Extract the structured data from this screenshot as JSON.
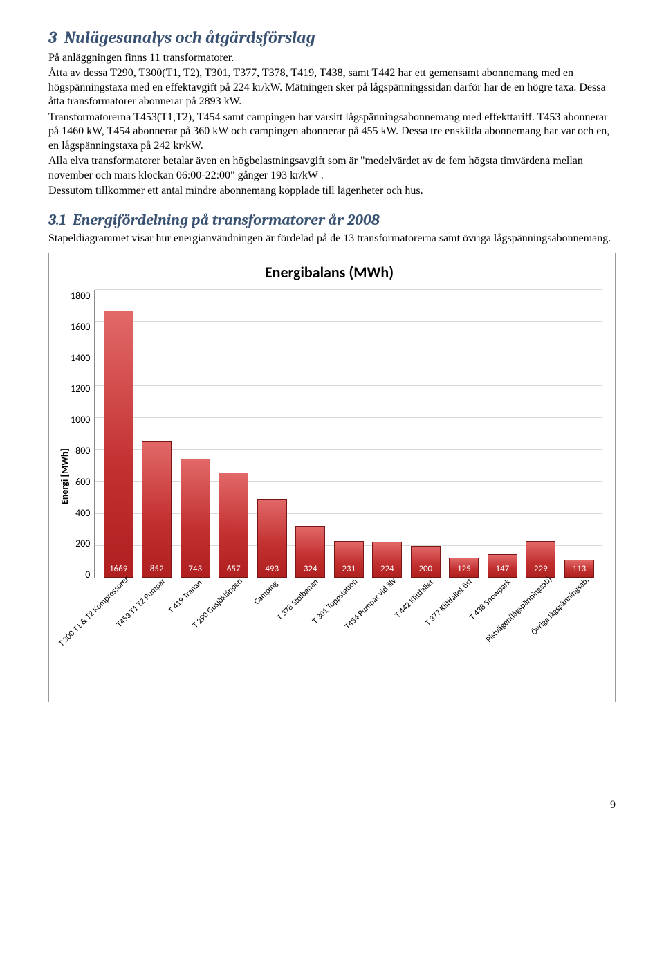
{
  "section": {
    "number": "3",
    "title": "Nulägesanalys och åtgärdsförslag",
    "para1": "På anläggningen finns 11 transformatorer.",
    "para2": "Åtta av dessa T290, T300(T1, T2), T301, T377, T378, T419, T438, samt T442 har ett gemensamt abonnemang med en högspänningstaxa med en effektavgift på 224 kr/kW. Mätningen sker på lågspänningssidan därför har de en högre taxa. Dessa åtta transformatorer abonnerar på 2893 kW.",
    "para3": "Transformatorerna T453(T1,T2), T454 samt campingen har varsitt lågspänningsabonnemang med effekttariff. T453 abonnerar på 1460 kW, T454 abonnerar på 360 kW och campingen abonnerar på 455 kW. Dessa tre enskilda abonnemang har var och en, en lågspänningstaxa på 242 kr/kW.",
    "para4": "Alla elva transformatorer betalar även en högbelastningsavgift som är \"medelvärdet av de fem högsta timvärdena mellan november och mars klockan 06:00-22:00\" gånger 193 kr/kW .",
    "para5": "Dessutom tillkommer ett antal mindre abonnemang kopplade till lägenheter och hus."
  },
  "subsection": {
    "number": "3.1",
    "title": "Energifördelning på transformatorer år 2008",
    "para1": "Stapeldiagrammet visar hur energianvändningen är fördelad på de 13 transformatorerna samt övriga lågspänningsabonnemang."
  },
  "chart": {
    "title": "Energibalans (MWh)",
    "ylabel": "Energi [MWh]",
    "ymax": 1800,
    "ystep": 200,
    "yticks": [
      "1800",
      "1600",
      "1400",
      "1200",
      "1000",
      "800",
      "600",
      "400",
      "200",
      "0"
    ],
    "categories": [
      "T 300 T1 & T2 Kompressorer",
      "T453 T1 T2 Pumpar",
      "T 419 Tranan",
      "T 290 Gusjökläppen",
      "Camping",
      "T 378 Stolbanan",
      "T 301 Toppstation",
      "T454 Pumpar vid älv",
      "T 442 Klittfallet",
      "T 377 Klittfallet öst",
      "T 438 Snowpark",
      "Pistvägen(lågspänningsab)",
      "Övriga lågspänningsab."
    ],
    "values": [
      1669,
      852,
      743,
      657,
      493,
      324,
      231,
      224,
      200,
      125,
      147,
      229,
      113
    ],
    "bar_color": "#c0392b",
    "grid_color": "#d9d9d9"
  },
  "page_number": "9"
}
